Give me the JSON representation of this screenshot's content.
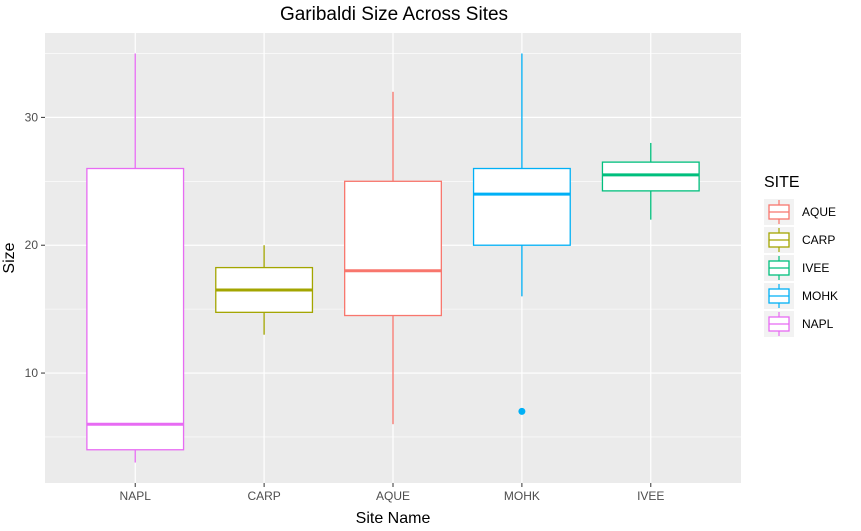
{
  "chart_data": {
    "type": "box",
    "title": "Garibaldi Size Across Sites",
    "xlabel": "Site Name",
    "ylabel": "Size",
    "ylim": [
      1.4,
      36.6
    ],
    "yticks": [
      10,
      20,
      30
    ],
    "grid": true,
    "legend_position": "right",
    "legend_title": "SITE",
    "legend_order": [
      "AQUE",
      "CARP",
      "IVEE",
      "MOHK",
      "NAPL"
    ],
    "categories": [
      "NAPL",
      "CARP",
      "AQUE",
      "MOHK",
      "IVEE"
    ],
    "colors": {
      "AQUE": "#F8766D",
      "CARP": "#A3A500",
      "IVEE": "#00BF7D",
      "MOHK": "#00B0F6",
      "NAPL": "#E76BF3"
    },
    "boxes": [
      {
        "site": "NAPL",
        "whisker_low": 3,
        "q1": 4,
        "median": 6,
        "q3": 26,
        "whisker_high": 35,
        "outliers": []
      },
      {
        "site": "CARP",
        "whisker_low": 13,
        "q1": 14.75,
        "median": 16.5,
        "q3": 18.25,
        "whisker_high": 20,
        "outliers": []
      },
      {
        "site": "AQUE",
        "whisker_low": 6,
        "q1": 14.5,
        "median": 18,
        "q3": 25,
        "whisker_high": 32,
        "outliers": []
      },
      {
        "site": "MOHK",
        "whisker_low": 16,
        "q1": 20,
        "median": 24,
        "q3": 26,
        "whisker_high": 35,
        "outliers": [
          7
        ]
      },
      {
        "site": "IVEE",
        "whisker_low": 22,
        "q1": 24.25,
        "median": 25.5,
        "q3": 26.5,
        "whisker_high": 28,
        "outliers": []
      }
    ]
  }
}
